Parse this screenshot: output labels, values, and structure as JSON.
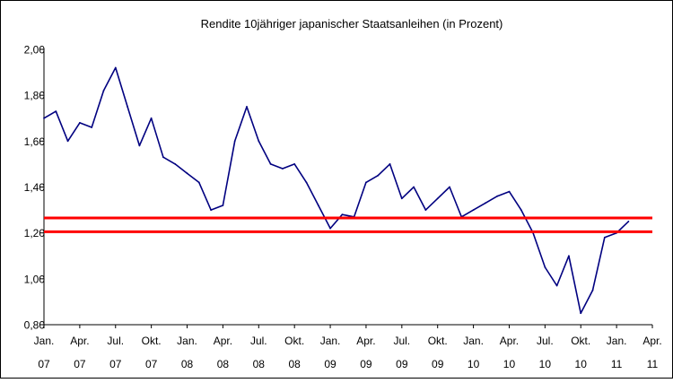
{
  "chart_data": {
    "type": "line",
    "title": "Rendite 10jähriger japanischer Staatsanleihen (in Prozent)",
    "xlabel": "",
    "ylabel": "",
    "ylim": [
      0.8,
      2.0
    ],
    "yticks": [
      "0,80",
      "1,00",
      "1,20",
      "1,40",
      "1,60",
      "1,80",
      "2,00"
    ],
    "xticks": [
      {
        "month": "Jan.",
        "year": "07"
      },
      {
        "month": "Apr.",
        "year": "07"
      },
      {
        "month": "Jul.",
        "year": "07"
      },
      {
        "month": "Okt.",
        "year": "07"
      },
      {
        "month": "Jan.",
        "year": "08"
      },
      {
        "month": "Apr.",
        "year": "08"
      },
      {
        "month": "Jul.",
        "year": "08"
      },
      {
        "month": "Okt.",
        "year": "08"
      },
      {
        "month": "Jan.",
        "year": "09"
      },
      {
        "month": "Apr.",
        "year": "09"
      },
      {
        "month": "Jul.",
        "year": "09"
      },
      {
        "month": "Okt.",
        "year": "09"
      },
      {
        "month": "Jan.",
        "year": "10"
      },
      {
        "month": "Apr.",
        "year": "10"
      },
      {
        "month": "Jul.",
        "year": "10"
      },
      {
        "month": "Okt.",
        "year": "10"
      },
      {
        "month": "Jan.",
        "year": "11"
      },
      {
        "month": "Apr.",
        "year": "11"
      }
    ],
    "series": [
      {
        "color": "#000080",
        "points": [
          [
            "2007-01",
            1.7
          ],
          [
            "2007-02",
            1.73
          ],
          [
            "2007-03",
            1.6
          ],
          [
            "2007-04",
            1.68
          ],
          [
            "2007-05",
            1.66
          ],
          [
            "2007-06",
            1.82
          ],
          [
            "2007-07",
            1.92
          ],
          [
            "2007-08",
            1.75
          ],
          [
            "2007-09",
            1.58
          ],
          [
            "2007-10",
            1.7
          ],
          [
            "2007-11",
            1.53
          ],
          [
            "2007-12",
            1.5
          ],
          [
            "2008-01",
            1.46
          ],
          [
            "2008-02",
            1.42
          ],
          [
            "2008-03",
            1.3
          ],
          [
            "2008-04",
            1.32
          ],
          [
            "2008-05",
            1.6
          ],
          [
            "2008-06",
            1.75
          ],
          [
            "2008-07",
            1.6
          ],
          [
            "2008-08",
            1.5
          ],
          [
            "2008-09",
            1.48
          ],
          [
            "2008-10",
            1.5
          ],
          [
            "2008-11",
            1.42
          ],
          [
            "2008-12",
            1.32
          ],
          [
            "2009-01",
            1.22
          ],
          [
            "2009-02",
            1.28
          ],
          [
            "2009-03",
            1.27
          ],
          [
            "2009-04",
            1.42
          ],
          [
            "2009-05",
            1.45
          ],
          [
            "2009-06",
            1.5
          ],
          [
            "2009-07",
            1.35
          ],
          [
            "2009-08",
            1.4
          ],
          [
            "2009-09",
            1.3
          ],
          [
            "2009-10",
            1.35
          ],
          [
            "2009-11",
            1.4
          ],
          [
            "2009-12",
            1.27
          ],
          [
            "2010-01",
            1.3
          ],
          [
            "2010-02",
            1.33
          ],
          [
            "2010-03",
            1.36
          ],
          [
            "2010-04",
            1.38
          ],
          [
            "2010-05",
            1.3
          ],
          [
            "2010-06",
            1.2
          ],
          [
            "2010-07",
            1.05
          ],
          [
            "2010-08",
            0.97
          ],
          [
            "2010-09",
            1.1
          ],
          [
            "2010-10",
            0.85
          ],
          [
            "2010-11",
            0.95
          ],
          [
            "2010-12",
            1.18
          ],
          [
            "2011-01",
            1.2
          ],
          [
            "2011-02",
            1.25
          ]
        ]
      }
    ],
    "reference_lines": [
      {
        "value": 1.265,
        "color": "#ff0000"
      },
      {
        "value": 1.205,
        "color": "#ff0000"
      }
    ],
    "grid": false,
    "legend": "none"
  }
}
